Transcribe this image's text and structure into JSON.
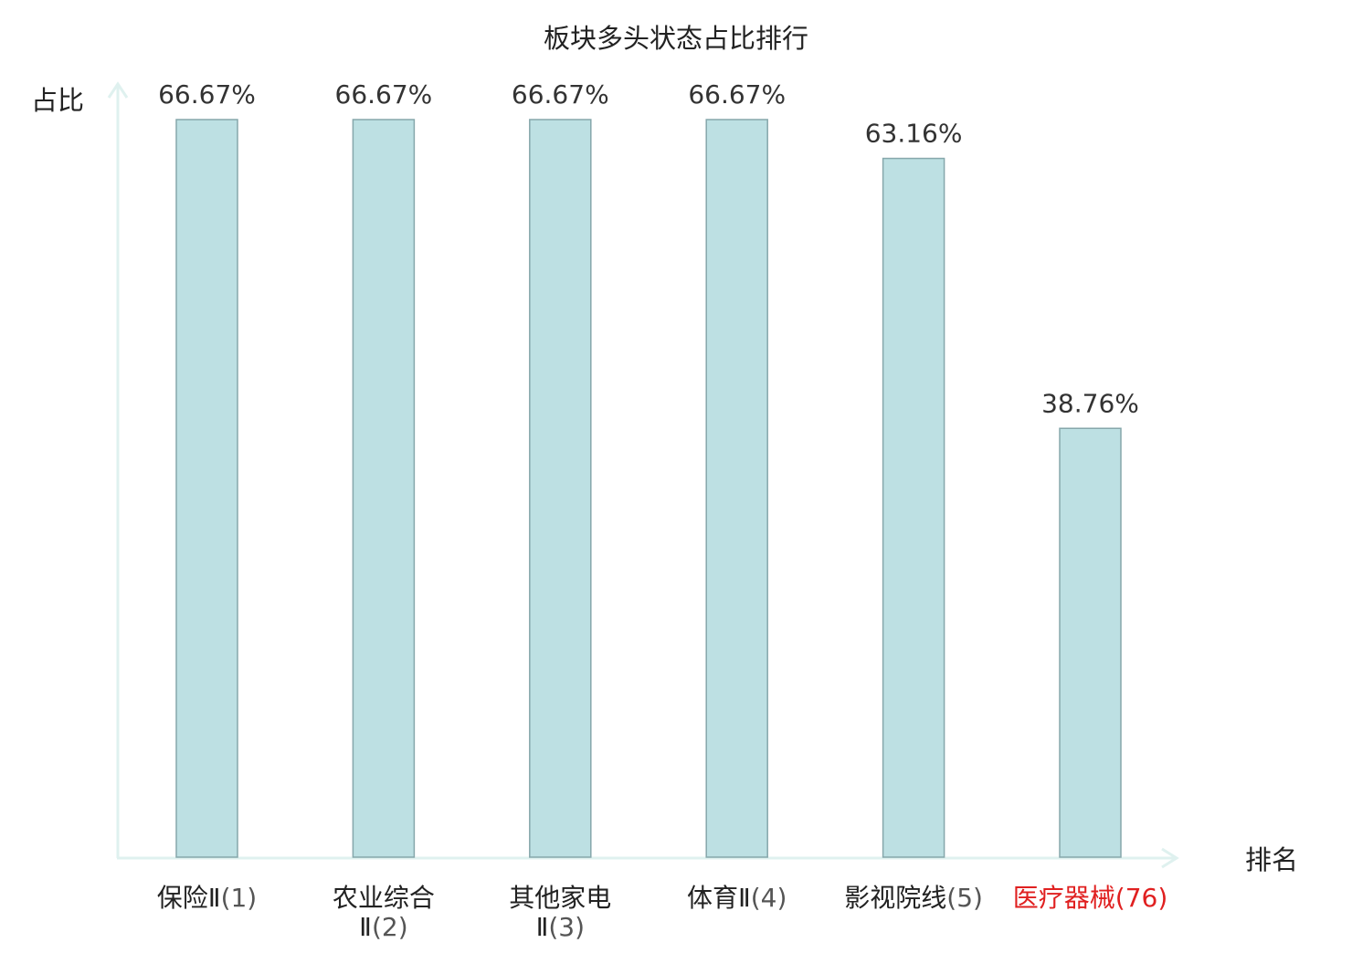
{
  "chart_data": {
    "type": "bar",
    "title": "板块多头状态占比排行",
    "ylabel": "占比",
    "xlabel": "排名",
    "ylim": [
      0,
      70
    ],
    "grid": false,
    "categories": [
      {
        "name_lines": [
          "保险Ⅱ"
        ],
        "rank": "(1)",
        "highlight": false
      },
      {
        "name_lines": [
          "农业综合",
          "Ⅱ"
        ],
        "rank": "(2)",
        "highlight": false
      },
      {
        "name_lines": [
          "其他家电",
          "Ⅱ"
        ],
        "rank": "(3)",
        "highlight": false
      },
      {
        "name_lines": [
          "体育Ⅱ"
        ],
        "rank": "(4)",
        "highlight": false
      },
      {
        "name_lines": [
          "影视院线"
        ],
        "rank": "(5)",
        "highlight": false
      },
      {
        "name_lines": [
          "医疗器械"
        ],
        "rank": "(76)",
        "highlight": true
      }
    ],
    "values": [
      66.67,
      66.67,
      66.67,
      66.67,
      63.16,
      38.76
    ],
    "value_labels": [
      "66.67%",
      "66.67%",
      "66.67%",
      "66.67%",
      "63.16%",
      "38.76%"
    ],
    "colors": {
      "bar_fill": "#bde0e3",
      "bar_stroke": "#86a7ab",
      "axis": "#dff1ef",
      "text": "#222222",
      "value_text": "#333333",
      "rank_text": "#555555",
      "highlight": "#e02020"
    }
  }
}
